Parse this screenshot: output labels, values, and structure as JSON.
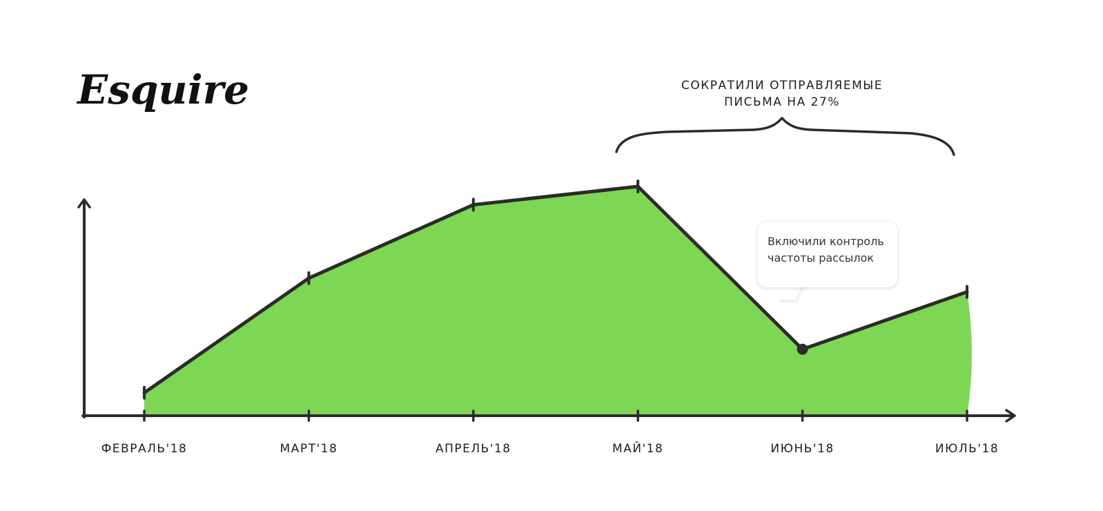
{
  "logo": {
    "text": "Esquire"
  },
  "annotation": {
    "line1": "СОКРАТИЛИ ОТПРАВЛЯЕМЫЕ",
    "line2": "ПИСЬМА НА 27%"
  },
  "callout": {
    "line1": "Включили контроль",
    "line2": "частоты рассылок"
  },
  "colors": {
    "fill": "#7ed655",
    "stroke": "#2b2b2b",
    "axis": "#2b2b2b"
  },
  "chart_data": {
    "type": "area",
    "title": "",
    "xlabel": "",
    "ylabel": "",
    "categories": [
      "ФЕВРАЛЬ'18",
      "МАРТ'18",
      "АПРЕЛЬ'18",
      "МАЙ'18",
      "ИЮНЬ'18",
      "ИЮЛЬ'18"
    ],
    "values": [
      10,
      60,
      92,
      100,
      29,
      54
    ],
    "ylim": [
      0,
      100
    ],
    "grid": false,
    "legend": "none",
    "highlight_point": "ИЮНЬ'18"
  }
}
